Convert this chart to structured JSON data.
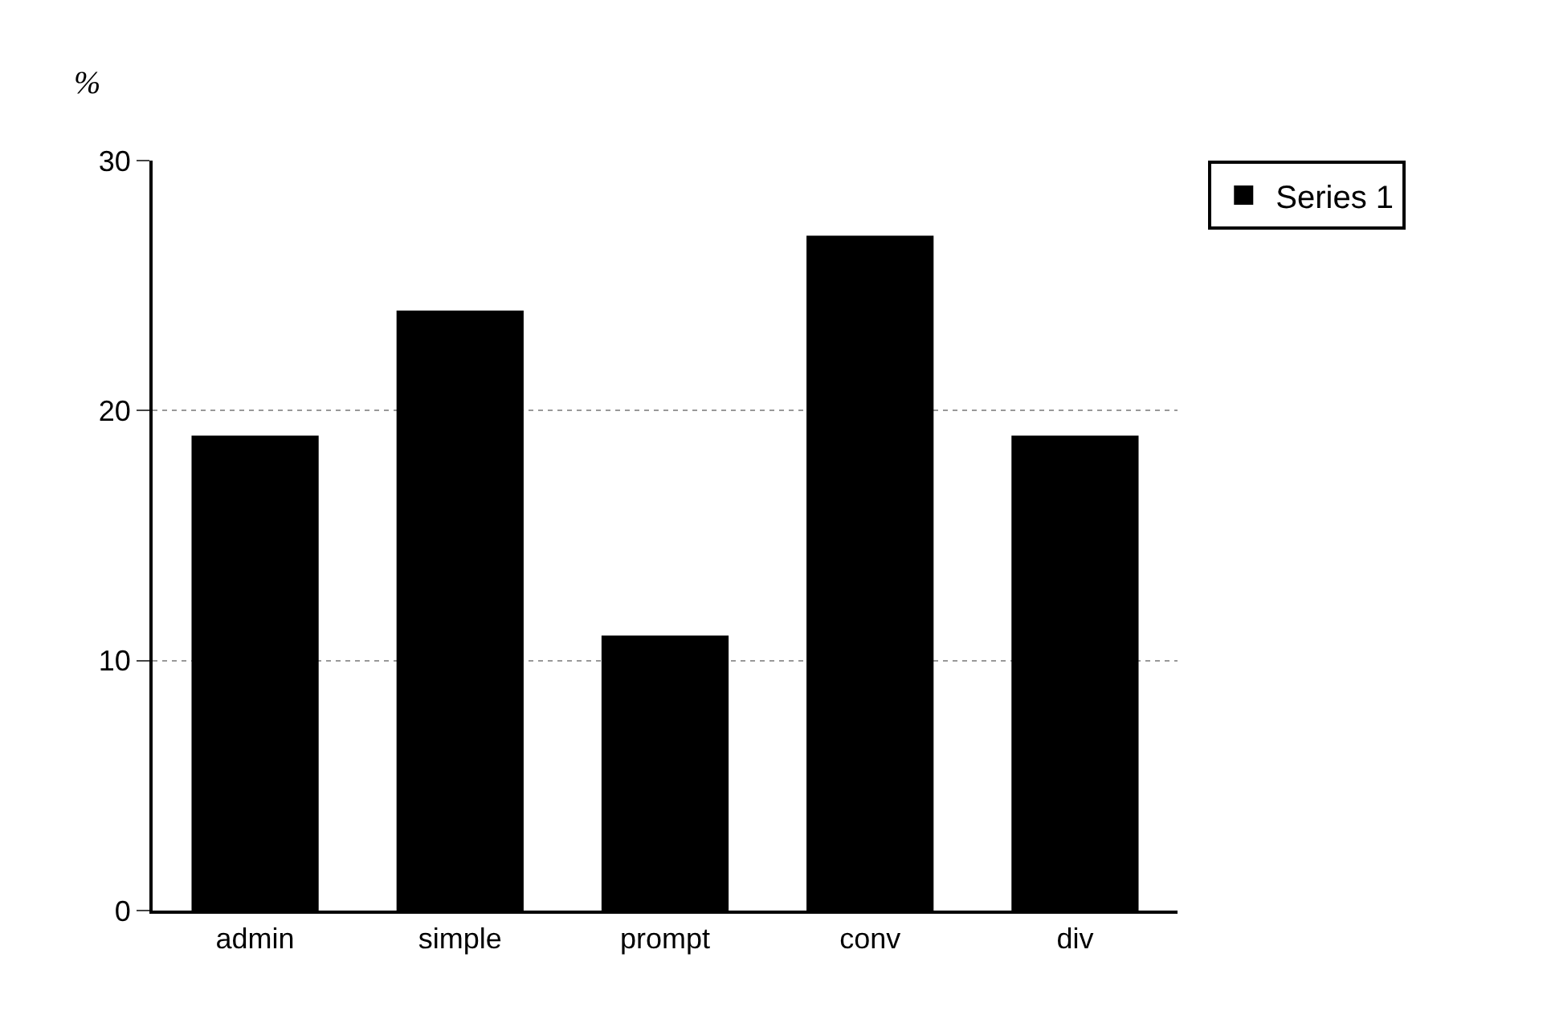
{
  "chart_data": {
    "type": "bar",
    "ylabel": "%",
    "categories": [
      "admin",
      "simple",
      "prompt",
      "conv",
      "div"
    ],
    "series": [
      {
        "name": "Series 1",
        "color": "#000000",
        "values": [
          19,
          24,
          11,
          27,
          19
        ]
      }
    ],
    "ylim": [
      0,
      30
    ],
    "yticks": [
      0,
      10,
      20,
      30
    ],
    "grid": "y",
    "legend": "top right"
  }
}
